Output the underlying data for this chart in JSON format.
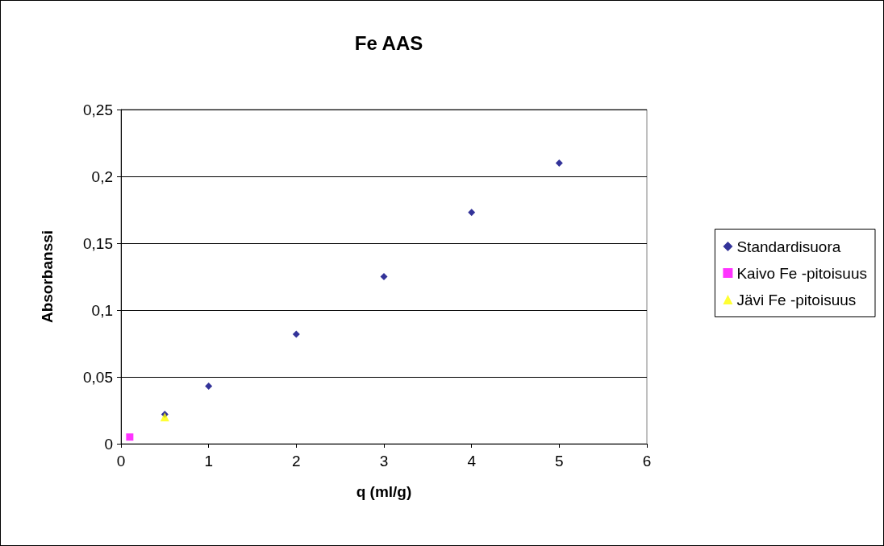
{
  "chart_data": {
    "type": "scatter",
    "title": "Fe AAS",
    "xlabel": "q (ml/g)",
    "ylabel": "Absorbanssi",
    "xlim": [
      0,
      6
    ],
    "xticks": [
      0,
      1,
      2,
      3,
      4,
      5,
      6
    ],
    "ylim": [
      0,
      0.25
    ],
    "yticks": [
      0,
      {
        "value": 0.05,
        "label": "0,05"
      },
      {
        "value": 0.1,
        "label": "0,1"
      },
      {
        "value": 0.15,
        "label": "0,15"
      },
      {
        "value": 0.2,
        "label": "0,2"
      },
      {
        "value": 0.25,
        "label": "0,25"
      }
    ],
    "grid": "y",
    "legend": "right",
    "series": [
      {
        "name": "Standardisuora",
        "color": "#000080",
        "marker": "diamond",
        "x": [
          0.5,
          1,
          2,
          3,
          4,
          5
        ],
        "values": [
          0.022,
          0.043,
          0.082,
          0.125,
          0.173,
          0.21
        ]
      },
      {
        "name": "Kaivo Fe -pitoisuus",
        "color": "#ff00ff",
        "marker": "square",
        "x": [
          0.1
        ],
        "values": [
          0.005
        ]
      },
      {
        "name": "Jävi Fe -pitoisuus",
        "color": "#ffff00",
        "marker": "triangle",
        "x": [
          0.5
        ],
        "values": [
          0.02
        ]
      }
    ]
  }
}
